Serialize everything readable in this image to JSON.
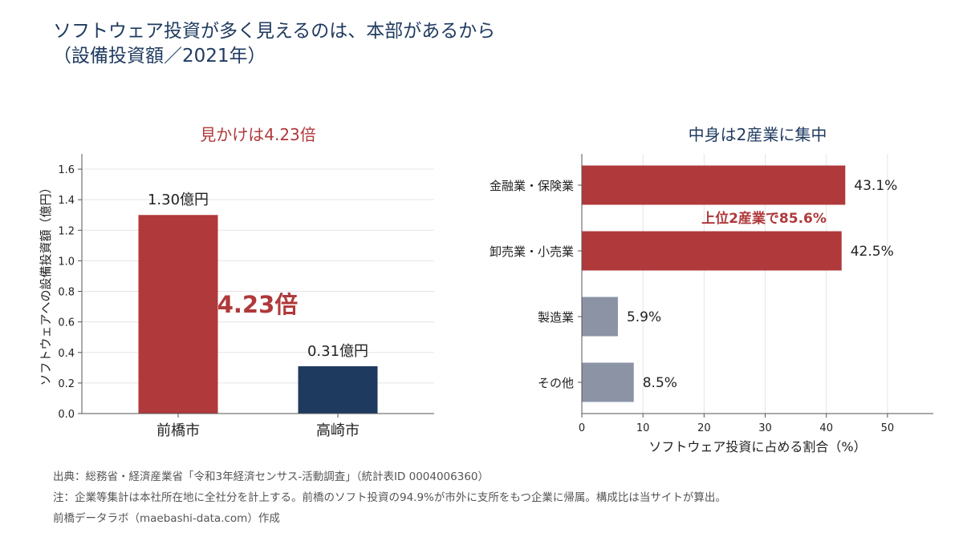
{
  "page": {
    "title_line1": "ソフトウェア投資が多く見えるのは、本部があるから",
    "title_line2": "（設備投資額／2021年）",
    "footer": {
      "source": "出典：総務省・経済産業省「令和3年経済センサス-活動調査」（統計表ID 0004006360）",
      "note": "注：企業等集計は本社所在地に全社分を計上する。前橋のソフト投資の94.9%が市外に支所をもつ企業に帰属。構成比は当サイトが算出。",
      "credit": "前橋データラボ（maebashi-data.com）作成"
    }
  },
  "colors": {
    "title": "#1f3a5f",
    "red": "#b0393b",
    "navy": "#1f3a5f",
    "gray": "#8b93a5",
    "axis": "#555555",
    "grid": "#e5e5e5"
  },
  "chart_data": [
    {
      "type": "bar",
      "title": "見かけは4.23倍",
      "categories": [
        "前橋市",
        "高崎市"
      ],
      "values": [
        1.3,
        0.31
      ],
      "value_labels": [
        "1.30億円",
        "0.31億円"
      ],
      "bar_colors": [
        "#b0393b",
        "#1f3a5f"
      ],
      "ylabel": "ソフトウェアへの設備投資額（億円）",
      "ylim": [
        0,
        1.7
      ],
      "yticks": [
        0.0,
        0.2,
        0.4,
        0.6,
        0.8,
        1.0,
        1.2,
        1.4,
        1.6
      ],
      "ytick_labels": [
        "0.0",
        "0.2",
        "0.4",
        "0.6",
        "0.8",
        "1.0",
        "1.2",
        "1.4",
        "1.6"
      ],
      "grid": true,
      "annotation": "4.23倍"
    },
    {
      "type": "bar",
      "orientation": "horizontal",
      "title": "中身は2産業に集中",
      "categories": [
        "金融業・保険業",
        "卸売業・小売業",
        "製造業",
        "その他"
      ],
      "values": [
        43.1,
        42.5,
        5.9,
        8.5
      ],
      "value_labels": [
        "43.1%",
        "42.5%",
        "5.9%",
        "8.5%"
      ],
      "bar_colors": [
        "#b0393b",
        "#b0393b",
        "#8b93a5",
        "#8b93a5"
      ],
      "xlabel": "ソフトウェア投資に占める割合（%）",
      "xlim": [
        0,
        57.5
      ],
      "xticks": [
        0,
        10,
        20,
        30,
        40,
        50
      ],
      "xtick_labels": [
        "0",
        "10",
        "20",
        "30",
        "40",
        "50"
      ],
      "grid": true,
      "annotation": "上位2産業で85.6%"
    }
  ]
}
